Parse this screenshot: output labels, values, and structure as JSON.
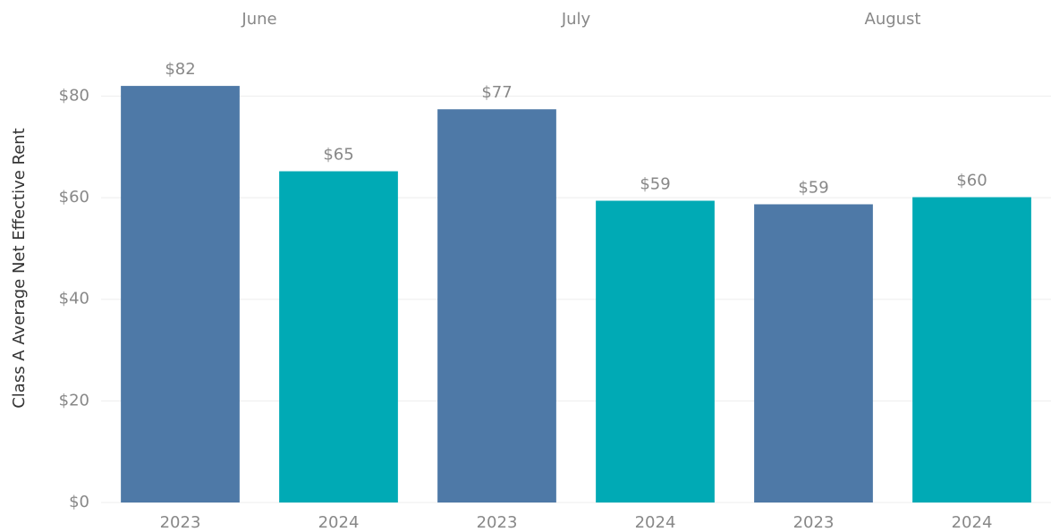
{
  "chart_data": {
    "type": "bar",
    "y_label": "Class A Average Net Effective Rent",
    "groups": [
      "June",
      "July",
      "August"
    ],
    "series": [
      {
        "name": "2023",
        "color": "#4e79a7",
        "values": [
          82,
          77.4,
          58.7
        ],
        "value_labels": [
          "$82",
          "$77",
          "$59"
        ]
      },
      {
        "name": "2024",
        "color": "#00aab5",
        "values": [
          65.2,
          59.4,
          60.1
        ],
        "value_labels": [
          "$65",
          "$59",
          "$60"
        ]
      }
    ],
    "ylim": [
      0,
      88
    ],
    "yticks": [
      {
        "value": 0,
        "label": "$0"
      },
      {
        "value": 20,
        "label": "$20"
      },
      {
        "value": 40,
        "label": "$40"
      },
      {
        "value": 60,
        "label": "$60"
      },
      {
        "value": 80,
        "label": "$80"
      }
    ],
    "grid": true
  }
}
